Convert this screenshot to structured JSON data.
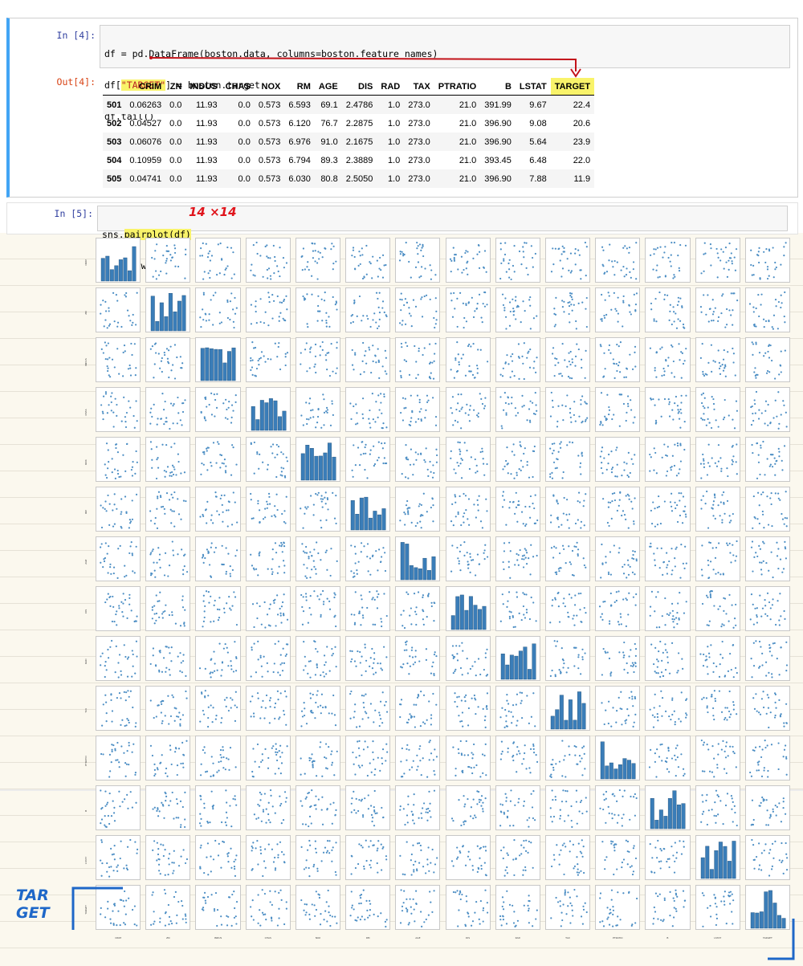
{
  "cell4": {
    "in_prompt": "In [4]:",
    "out_prompt": "Out[4]:",
    "code": {
      "line1": "df = pd.DataFrame(boston.data, columns=boston.feature_names)",
      "line2_a": "df[",
      "line2_str": "\"TARGET\"",
      "line2_b": "] = boston.target",
      "line3": "df.tail()"
    }
  },
  "dataframe": {
    "columns": [
      "CRIM",
      "ZN",
      "INDUS",
      "CHAS",
      "NOX",
      "RM",
      "AGE",
      "DIS",
      "RAD",
      "TAX",
      "PTRATIO",
      "B",
      "LSTAT",
      "TARGET"
    ],
    "rows": [
      {
        "index": "501",
        "values": [
          "0.06263",
          "0.0",
          "11.93",
          "0.0",
          "0.573",
          "6.593",
          "69.1",
          "2.4786",
          "1.0",
          "273.0",
          "21.0",
          "391.99",
          "9.67",
          "22.4"
        ]
      },
      {
        "index": "502",
        "values": [
          "0.04527",
          "0.0",
          "11.93",
          "0.0",
          "0.573",
          "6.120",
          "76.7",
          "2.2875",
          "1.0",
          "273.0",
          "21.0",
          "396.90",
          "9.08",
          "20.6"
        ]
      },
      {
        "index": "503",
        "values": [
          "0.06076",
          "0.0",
          "11.93",
          "0.0",
          "0.573",
          "6.976",
          "91.0",
          "2.1675",
          "1.0",
          "273.0",
          "21.0",
          "396.90",
          "5.64",
          "23.9"
        ]
      },
      {
        "index": "504",
        "values": [
          "0.10959",
          "0.0",
          "11.93",
          "0.0",
          "0.573",
          "6.794",
          "89.3",
          "2.3889",
          "1.0",
          "273.0",
          "21.0",
          "393.45",
          "6.48",
          "22.0"
        ]
      },
      {
        "index": "505",
        "values": [
          "0.04741",
          "0.0",
          "11.93",
          "0.0",
          "0.573",
          "6.030",
          "80.8",
          "2.5050",
          "1.0",
          "273.0",
          "21.0",
          "396.90",
          "7.88",
          "11.9"
        ]
      }
    ]
  },
  "cell5": {
    "in_prompt": "In [5]:",
    "code": {
      "line1_a": "sns.",
      "line1_hl": "pairplot(df)",
      "line2": "plt.show()"
    }
  },
  "annotations": {
    "grid_size_note": "14 ×14",
    "target_note_line1": "TAR",
    "target_note_line2": "GET"
  },
  "pairplot": {
    "variables": [
      "CRIM",
      "ZN",
      "INDUS",
      "CHAS",
      "NOX",
      "RM",
      "AGE",
      "DIS",
      "RAD",
      "TAX",
      "PTRATIO",
      "B",
      "LSTAT",
      "TARGET"
    ],
    "point_color": "#4c8ec4",
    "hist_color": "#3a7db8"
  },
  "colors": {
    "highlight": "#f9f36a",
    "annotation_red": "#e0151c",
    "annotation_blue": "#1e67c8",
    "cell_accent": "#42a5f5"
  }
}
